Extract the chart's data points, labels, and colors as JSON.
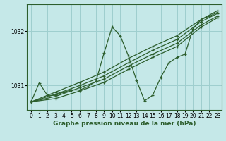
{
  "xlabel": "Graphe pression niveau de la mer (hPa)",
  "bg_color": "#c5e8e8",
  "grid_color": "#9ecece",
  "line_color": "#2d5e2d",
  "xlim": [
    -0.5,
    23.5
  ],
  "ylim": [
    1030.55,
    1032.5
  ],
  "yticks": [
    1031,
    1032
  ],
  "xticks": [
    0,
    1,
    2,
    3,
    4,
    5,
    6,
    7,
    8,
    9,
    10,
    11,
    12,
    13,
    14,
    15,
    16,
    17,
    18,
    19,
    20,
    21,
    22,
    23
  ],
  "series": [
    {
      "x": [
        0,
        1,
        2,
        3,
        4,
        5,
        6,
        7,
        8,
        9,
        10,
        11,
        12,
        13,
        14,
        15,
        16,
        17,
        18,
        19,
        20,
        21,
        22,
        23
      ],
      "y": [
        1030.7,
        1031.05,
        1030.82,
        1030.82,
        1030.88,
        1030.92,
        1030.92,
        1030.98,
        1031.08,
        1031.6,
        1032.08,
        1031.92,
        1031.55,
        1031.1,
        1030.72,
        1030.82,
        1031.15,
        1031.42,
        1031.52,
        1031.58,
        1032.05,
        1032.22,
        1032.28,
        1032.35
      ]
    },
    {
      "x": [
        0,
        3,
        6,
        9,
        12,
        15,
        18,
        21,
        23
      ],
      "y": [
        1030.7,
        1030.88,
        1031.06,
        1031.25,
        1031.5,
        1031.72,
        1031.92,
        1032.22,
        1032.38
      ]
    },
    {
      "x": [
        0,
        3,
        6,
        9,
        12,
        15,
        18,
        21,
        23
      ],
      "y": [
        1030.7,
        1030.84,
        1031.0,
        1031.18,
        1031.42,
        1031.65,
        1031.85,
        1032.18,
        1032.33
      ]
    },
    {
      "x": [
        0,
        3,
        6,
        9,
        12,
        15,
        18,
        21,
        23
      ],
      "y": [
        1030.7,
        1030.8,
        1030.96,
        1031.12,
        1031.36,
        1031.58,
        1031.78,
        1032.12,
        1032.28
      ]
    },
    {
      "x": [
        0,
        3,
        6,
        9,
        12,
        15,
        18,
        21,
        23
      ],
      "y": [
        1030.7,
        1030.76,
        1030.9,
        1031.06,
        1031.3,
        1031.52,
        1031.72,
        1032.08,
        1032.25
      ]
    }
  ],
  "tick_fontsize": 5.5,
  "xlabel_fontsize": 6.5,
  "ylabel_fontsize": 6,
  "linewidth": 0.9,
  "markersize": 3.0
}
